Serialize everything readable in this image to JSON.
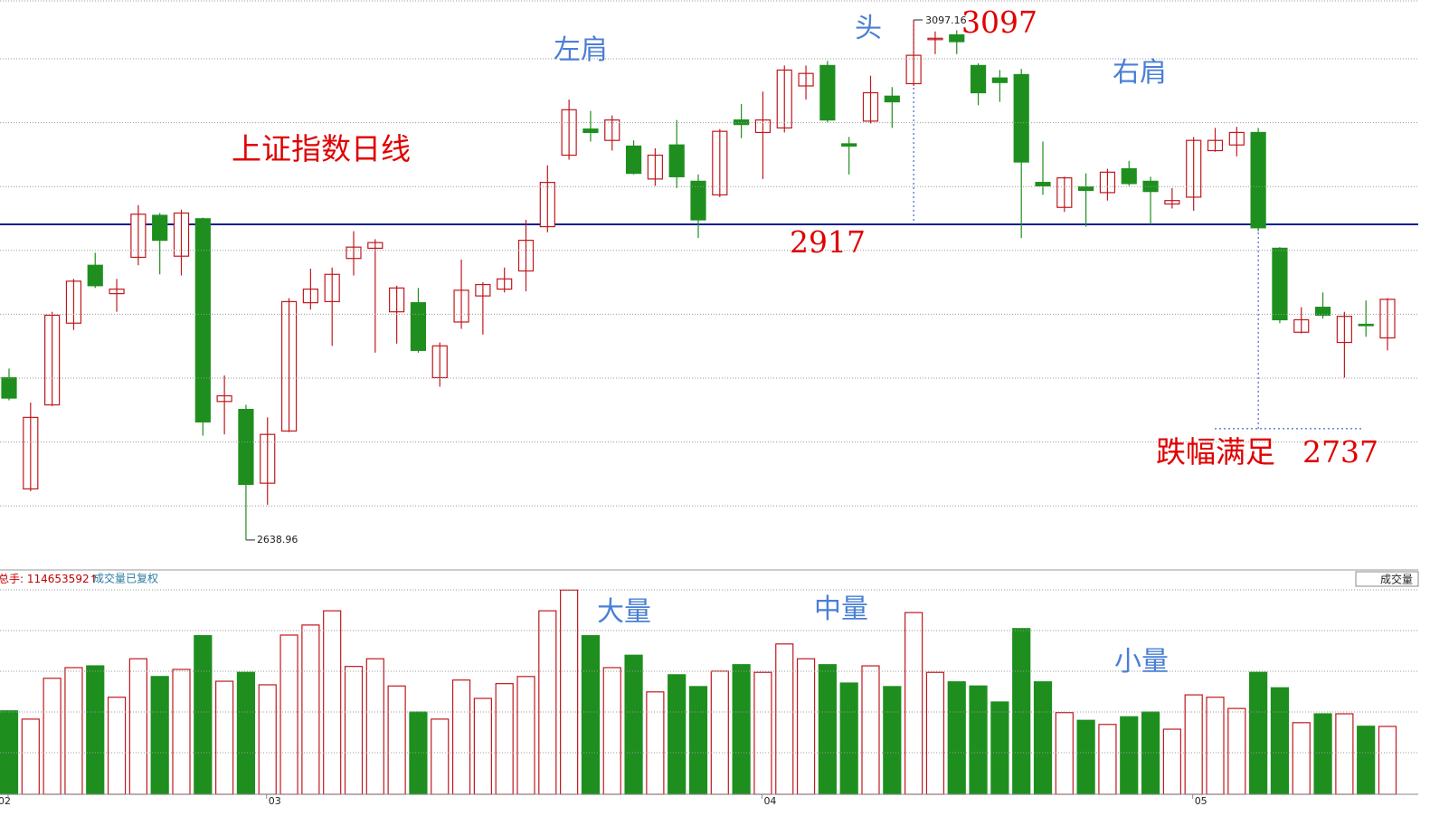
{
  "chart_data": {
    "type": "candlestick",
    "title": "上证指数日线",
    "categories": [
      "02",
      null,
      null,
      null,
      null,
      null,
      null,
      null,
      null,
      null,
      null,
      null,
      "03",
      null,
      null,
      null,
      null,
      null,
      null,
      null,
      null,
      null,
      null,
      null,
      null,
      null,
      null,
      null,
      null,
      null,
      null,
      null,
      null,
      null,
      null,
      "04",
      null,
      null,
      null,
      null,
      null,
      null,
      null,
      null,
      null,
      null,
      null,
      null,
      null,
      null,
      null,
      null,
      null,
      null,
      null,
      "05",
      null,
      null,
      null,
      null,
      null,
      null,
      null,
      null,
      null
    ],
    "open": [
      2782,
      2684,
      2758,
      2830,
      2881,
      2856,
      2888,
      2925,
      2889,
      2922,
      2761,
      2754,
      2689,
      2735,
      2848,
      2849,
      2887,
      2896,
      2840,
      2848,
      2782,
      2831,
      2854,
      2860,
      2876,
      2915,
      2978,
      3001,
      2991,
      2986,
      2957,
      2987,
      2955,
      2943,
      3009,
      2998,
      3002,
      3039,
      3057,
      2988,
      3008,
      3030,
      3041,
      3080,
      3084,
      3057,
      3046,
      3049,
      2954,
      2932,
      2950,
      2945,
      2966,
      2955,
      2935,
      2941,
      2982,
      2987,
      2998,
      2896,
      2822,
      2844,
      2813,
      2829,
      2817
    ],
    "high": [
      2790,
      2760,
      2840,
      2869,
      2892,
      2869,
      2934,
      2927,
      2930,
      2923,
      2784,
      2758,
      2747,
      2852,
      2878,
      2879,
      2911,
      2904,
      2863,
      2861,
      2813,
      2886,
      2866,
      2879,
      2921,
      2969,
      3027,
      3017,
      3013,
      2991,
      2984,
      3009,
      2961,
      3001,
      3023,
      3034,
      3057,
      3057,
      3061,
      2994,
      3048,
      3038,
      3097.16,
      3087,
      3088,
      3059,
      3053,
      3054,
      2990,
      2959,
      2962,
      2966,
      2973,
      2959,
      2949,
      2994,
      3002,
      3003,
      3002,
      2897,
      2844,
      2857,
      2840,
      2850,
      2852
    ],
    "low": [
      2762,
      2682,
      2757,
      2824,
      2861,
      2840,
      2881,
      2873,
      2872,
      2731,
      2732,
      2638.96,
      2670,
      2734,
      2842,
      2810,
      2872,
      2804,
      2812,
      2804,
      2774,
      2825,
      2820,
      2857,
      2858,
      2910,
      2974,
      2990,
      2982,
      2961,
      2951,
      2949,
      2905,
      2941,
      2993,
      2957,
      2998,
      3027,
      3007,
      2961,
      3006,
      3002,
      3039,
      3067,
      3067,
      3022,
      3025,
      2905,
      2943,
      2928,
      2915,
      2938,
      2951,
      2917,
      2931,
      2929,
      2981,
      2977,
      2911,
      2830,
      2821,
      2834,
      2782,
      2818,
      2806
    ],
    "close": [
      2764,
      2747,
      2837,
      2867,
      2863,
      2860,
      2926,
      2903,
      2927,
      2743,
      2766,
      2688,
      2732,
      2849,
      2860,
      2873,
      2897,
      2901,
      2861,
      2806,
      2810,
      2859,
      2864,
      2869,
      2903,
      2954,
      3018,
      2998,
      3009,
      2962,
      2978,
      2959,
      2921,
      2999,
      3005,
      3009,
      3053,
      3050,
      3009,
      2986,
      3033,
      3025,
      3066,
      3081,
      3078,
      3033,
      3042,
      2972,
      2951,
      2958,
      2947,
      2963,
      2953,
      2946,
      2938,
      2991,
      2991,
      2998,
      2914,
      2833,
      2833,
      2837,
      2836,
      2828,
      2851
    ],
    "volume": [
      141000000,
      127000000,
      196000000,
      214000000,
      217000000,
      164000000,
      229000000,
      199000000,
      211000000,
      268000000,
      191000000,
      206000000,
      185000000,
      269000000,
      286000000,
      310000000,
      216000000,
      229000000,
      183000000,
      139000000,
      127000000,
      193000000,
      162000000,
      187000000,
      199000000,
      310000000,
      345000000,
      268000000,
      214000000,
      235000000,
      173000000,
      202000000,
      182000000,
      208000000,
      219000000,
      206000000,
      254000000,
      229000000,
      219000000,
      188000000,
      217000000,
      182000000,
      307000000,
      206000000,
      190000000,
      183000000,
      156000000,
      280000000,
      190000000,
      138000000,
      125000000,
      118000000,
      131000000,
      139000000,
      110000000,
      168000000,
      164000000,
      145000000,
      206000000,
      180000000,
      121000000,
      136000000,
      136000000,
      115000000,
      114653592
    ],
    "ylim": [
      2612.6,
      3114.7
    ],
    "volume_ylim": [
      0,
      376000000
    ],
    "up_color": "#c0181e",
    "down_color": "#1e8f1e",
    "grid": true,
    "hline": 2917,
    "hline_color": "#0b1f8f",
    "target": 2737,
    "target_label": "跌幅满足",
    "annotations": {
      "left_shoulder": "左肩",
      "head": "头",
      "right_shoulder": "右肩",
      "head_value": "3097",
      "big_volume": "大量",
      "mid_volume": "中量",
      "small_volume": "小量"
    },
    "volume_header": {
      "label": "总手:",
      "arrow": "↑",
      "note": "成交量已复权",
      "button": "成交量"
    }
  }
}
